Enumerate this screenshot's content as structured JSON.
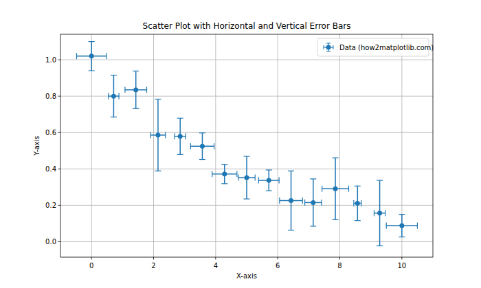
{
  "chart_data": {
    "type": "scatter",
    "title": "Scatter Plot with Horizontal and Vertical Error Bars",
    "x_label": "X-axis",
    "y_label": "Y-axis",
    "x": [
      0,
      0.714,
      1.429,
      2.143,
      2.857,
      3.571,
      4.286,
      5.0,
      5.714,
      6.429,
      7.143,
      7.857,
      8.571,
      9.286,
      10
    ],
    "series": [
      {
        "name": "Data (how2matplotlib.com)",
        "color": "#1f77b4",
        "marker": "circle",
        "values": [
          1.02,
          0.8,
          0.835,
          0.586,
          0.579,
          0.525,
          0.372,
          0.352,
          0.337,
          0.226,
          0.215,
          0.291,
          0.211,
          0.157,
          0.088
        ],
        "xerr": [
          0.48,
          0.17,
          0.35,
          0.24,
          0.18,
          0.38,
          0.4,
          0.27,
          0.33,
          0.37,
          0.27,
          0.43,
          0.12,
          0.18,
          0.5
        ],
        "yerr": [
          0.08,
          0.115,
          0.103,
          0.197,
          0.1,
          0.073,
          0.053,
          0.117,
          0.057,
          0.163,
          0.13,
          0.17,
          0.095,
          0.18,
          0.062
        ]
      }
    ],
    "xlim": [
      -1,
      11
    ],
    "ylim": [
      -0.085,
      1.14
    ],
    "xticks": [
      0,
      2,
      4,
      6,
      8,
      10
    ],
    "yticks": [
      {
        "value": 0,
        "label": "0.0"
      },
      0.2,
      0.4,
      0.6,
      0.8,
      {
        "value": 1,
        "label": "1.0"
      }
    ],
    "grid": true,
    "legend": "upper-right"
  }
}
